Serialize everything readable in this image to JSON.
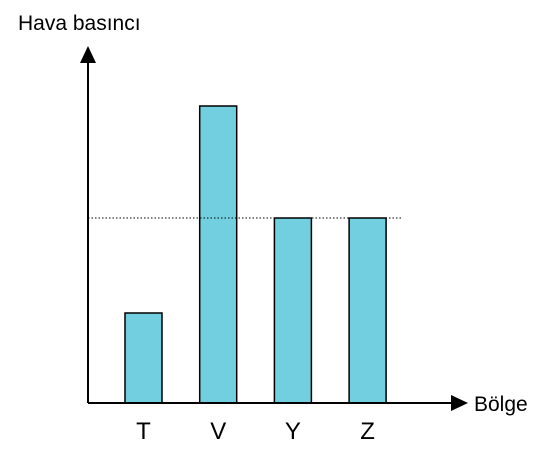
{
  "chart_data": {
    "type": "bar",
    "y_label": "Hava basıncı",
    "x_label": "Bölge",
    "categories": [
      "T",
      "V",
      "Y",
      "Z"
    ],
    "values": [
      90,
      297,
      185,
      185
    ],
    "color": "#72cfe0",
    "reference_line": 185,
    "ylim": [
      0,
      355
    ]
  }
}
